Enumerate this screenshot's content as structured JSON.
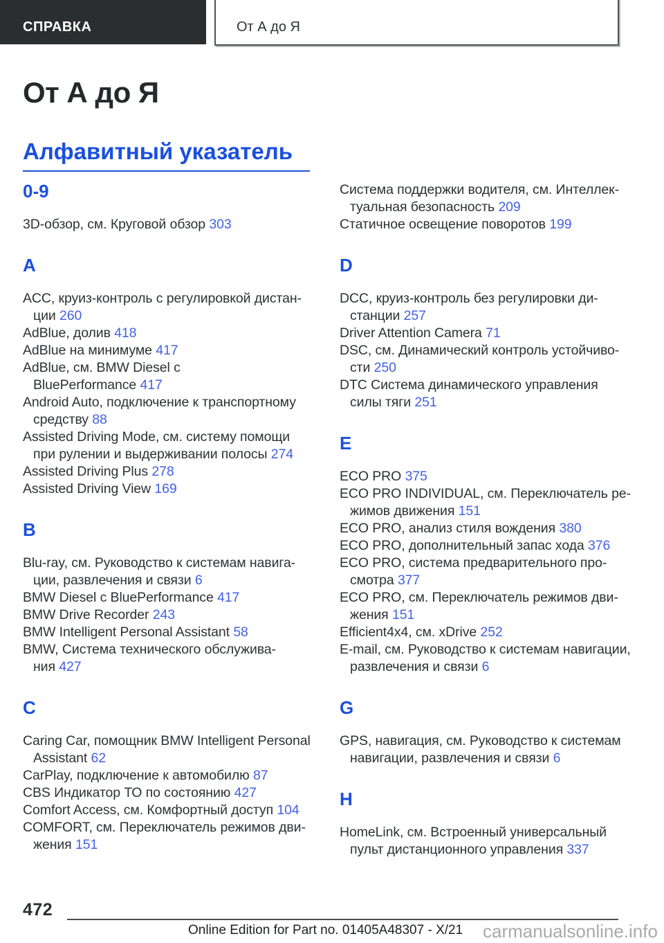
{
  "colors": {
    "heading_blue": "#1b4fdd",
    "link_blue": "#4361e2",
    "tab_background": "#2b2e2f"
  },
  "header": {
    "tab_label": "СПРАВКА",
    "box_title": "От А до Я"
  },
  "page": {
    "title": "От А до Я",
    "index_heading": "Алфавитный указатель"
  },
  "columns": [
    {
      "blocks": [
        {
          "type": "letter",
          "label": "0-9"
        },
        {
          "type": "entries",
          "items": [
            {
              "lines": [
                "3D-обзор, см. Круговой обзор"
              ],
              "page": "303"
            }
          ]
        },
        {
          "type": "letter",
          "label": "A"
        },
        {
          "type": "entries",
          "items": [
            {
              "lines": [
                "ACC, круиз-контроль с регулировкой дистан-",
                "ции"
              ],
              "page": "260"
            },
            {
              "lines": [
                "AdBlue, долив"
              ],
              "page": "418"
            },
            {
              "lines": [
                "AdBlue на минимуме"
              ],
              "page": "417"
            },
            {
              "lines": [
                "AdBlue, см. BMW Diesel с",
                "BluePerformance"
              ],
              "page": "417"
            },
            {
              "lines": [
                "Android Auto, подключение к транспортному",
                "средству"
              ],
              "page": "88"
            },
            {
              "lines": [
                "Assisted Driving Mode, см. систему помощи",
                "при рулении и выдерживании полосы"
              ],
              "page": "274"
            },
            {
              "lines": [
                "Assisted Driving Plus"
              ],
              "page": "278"
            },
            {
              "lines": [
                "Assisted Driving View"
              ],
              "page": "169"
            }
          ]
        },
        {
          "type": "letter",
          "label": "B"
        },
        {
          "type": "entries",
          "items": [
            {
              "lines": [
                "Blu-ray, см. Руководство к системам навига-",
                "ции, развлечения и связи"
              ],
              "page": "6"
            },
            {
              "lines": [
                "BMW Diesel с BluePerformance"
              ],
              "page": "417"
            },
            {
              "lines": [
                "BMW Drive Recorder"
              ],
              "page": "243"
            },
            {
              "lines": [
                "BMW Intelligent Personal Assistant"
              ],
              "page": "58"
            },
            {
              "lines": [
                "BMW, Система технического обслужива-",
                "ния"
              ],
              "page": "427"
            }
          ]
        },
        {
          "type": "letter",
          "label": "C"
        },
        {
          "type": "entries",
          "items": [
            {
              "lines": [
                "Caring Car, помощник BMW Intelligent Personal",
                "Assistant"
              ],
              "page": "62"
            },
            {
              "lines": [
                "CarPlay, подключение к автомобилю"
              ],
              "page": "87"
            },
            {
              "lines": [
                "CBS Индикатор ТО по состоянию"
              ],
              "page": "427"
            },
            {
              "lines": [
                "Comfort Access, см. Комфортный доступ"
              ],
              "page": "104"
            },
            {
              "lines": [
                "COMFORT, см. Переключатель режимов дви-",
                "жения"
              ],
              "page": "151"
            }
          ]
        }
      ]
    },
    {
      "blocks": [
        {
          "type": "entries",
          "items": [
            {
              "lines": [
                "Система поддержки водителя, см. Интеллек-",
                "туальная безопасность"
              ],
              "page": "209"
            },
            {
              "lines": [
                "Статичное освещение поворотов"
              ],
              "page": "199"
            }
          ]
        },
        {
          "type": "letter",
          "label": "D"
        },
        {
          "type": "entries",
          "items": [
            {
              "lines": [
                "DCC, круиз-контроль без регулировки ди-",
                "станции"
              ],
              "page": "257"
            },
            {
              "lines": [
                "Driver Attention Camera"
              ],
              "page": "71"
            },
            {
              "lines": [
                "DSC, см. Динамический контроль устойчиво-",
                "сти"
              ],
              "page": "250"
            },
            {
              "lines": [
                "DTC Система динамического управления",
                "силы тяги"
              ],
              "page": "251"
            }
          ]
        },
        {
          "type": "letter",
          "label": "E"
        },
        {
          "type": "entries",
          "items": [
            {
              "lines": [
                "ECO PRO"
              ],
              "page": "375"
            },
            {
              "lines": [
                "ECO PRO INDIVIDUAL, см. Переключатель ре-",
                "жимов движения"
              ],
              "page": "151"
            },
            {
              "lines": [
                "ECO PRO, анализ стиля вождения"
              ],
              "page": "380"
            },
            {
              "lines": [
                "ECO PRO, дополнительный запас хода"
              ],
              "page": "376"
            },
            {
              "lines": [
                "ECO PRO, система предварительного про-",
                "смотра"
              ],
              "page": "377"
            },
            {
              "lines": [
                "ECO PRO, см. Переключатель режимов дви-",
                "жения"
              ],
              "page": "151"
            },
            {
              "lines": [
                "Efficient4x4, см. xDrive"
              ],
              "page": "252"
            },
            {
              "lines": [
                "E-mail, см. Руководство к системам навигации,",
                "развлечения и связи"
              ],
              "page": "6"
            }
          ]
        },
        {
          "type": "letter",
          "label": "G"
        },
        {
          "type": "entries",
          "items": [
            {
              "lines": [
                "GPS, навигация, см. Руководство к системам",
                "навигации, развлечения и связи"
              ],
              "page": "6"
            }
          ]
        },
        {
          "type": "letter",
          "label": "H"
        },
        {
          "type": "entries",
          "items": [
            {
              "lines": [
                "HomeLink, см. Встроенный универсальный",
                "пульт дистанционного управления"
              ],
              "page": "337"
            }
          ]
        }
      ]
    }
  ],
  "footer": {
    "page_number": "472",
    "note": "Online Edition for Part no. 01405A48307 - X/21",
    "watermark": "carmanualsonline.info"
  }
}
